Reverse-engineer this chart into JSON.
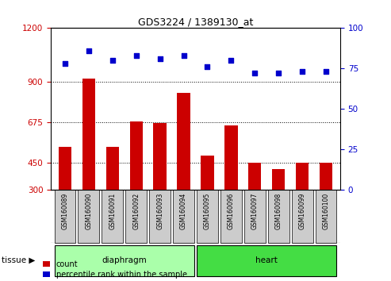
{
  "title": "GDS3224 / 1389130_at",
  "samples": [
    "GSM160089",
    "GSM160090",
    "GSM160091",
    "GSM160092",
    "GSM160093",
    "GSM160094",
    "GSM160095",
    "GSM160096",
    "GSM160097",
    "GSM160098",
    "GSM160099",
    "GSM160100"
  ],
  "counts": [
    540,
    920,
    540,
    680,
    670,
    840,
    490,
    660,
    450,
    415,
    450,
    450
  ],
  "percentiles": [
    78,
    86,
    80,
    83,
    81,
    83,
    76,
    80,
    72,
    72,
    73,
    73
  ],
  "ylim_left": [
    300,
    1200
  ],
  "ylim_right": [
    0,
    100
  ],
  "yticks_left": [
    300,
    450,
    675,
    900,
    1200
  ],
  "yticks_right": [
    0,
    25,
    50,
    75,
    100
  ],
  "hgrid_vals": [
    450,
    675,
    900
  ],
  "groups": [
    {
      "label": "diaphragm",
      "start": 0,
      "end": 5,
      "color": "#AAFFAA"
    },
    {
      "label": "heart",
      "start": 6,
      "end": 11,
      "color": "#44DD44"
    }
  ],
  "bar_color": "#CC0000",
  "dot_color": "#0000CC",
  "tissue_label": "tissue",
  "arrow": "▶",
  "legend_count": "count",
  "legend_percentile": "percentile rank within the sample",
  "xtick_bg": "#CCCCCC",
  "n_samples": 12
}
